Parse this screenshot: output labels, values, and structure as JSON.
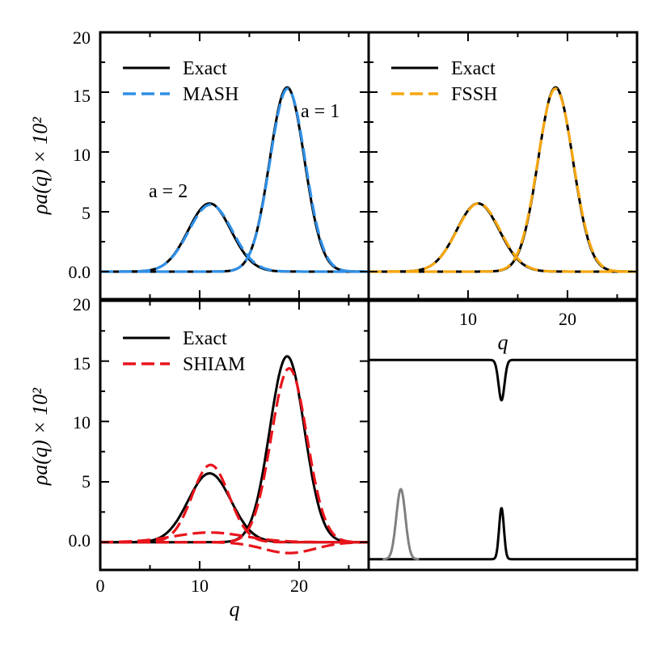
{
  "chart_data": [
    {
      "panel": "top-left",
      "type": "line",
      "ylabel": "ρa(q) × 10²",
      "ylim": [
        -2.3,
        20
      ],
      "xlim": [
        0,
        27
      ],
      "yticks": [
        {
          "value": 0,
          "label": "0.0"
        },
        {
          "value": 5,
          "label": "5"
        },
        {
          "value": 10,
          "label": "10"
        },
        {
          "value": 15,
          "label": "15"
        },
        {
          "value": 20,
          "label": "20"
        }
      ],
      "legend": {
        "position": "top-left",
        "entries": [
          "Exact",
          "MASH"
        ]
      },
      "annotations": [
        {
          "text": "a = 2",
          "x": 7.8,
          "y": 6.8
        },
        {
          "text": "a = 1",
          "x": 22.8,
          "y": 13.0
        }
      ],
      "series": [
        {
          "name": "Exact",
          "role": "exact",
          "peaks": [
            {
              "amp": 5.7,
              "mu": 11.0,
              "sigma": 2.15
            },
            {
              "amp": 15.4,
              "mu": 18.8,
              "sigma": 1.75
            }
          ]
        },
        {
          "name": "MASH",
          "role": "method",
          "color": "#2f8fe6",
          "peaks": [
            {
              "amp": 5.6,
              "mu": 11.1,
              "sigma": 2.2
            },
            {
              "amp": 15.3,
              "mu": 18.85,
              "sigma": 1.77
            }
          ]
        }
      ]
    },
    {
      "panel": "top-right",
      "type": "line",
      "xlabel": "q",
      "xlim": [
        0,
        27
      ],
      "ylim": [
        -2.3,
        20
      ],
      "xticks": [
        {
          "value": 10,
          "label": "10"
        },
        {
          "value": 20,
          "label": "20"
        }
      ],
      "legend": {
        "position": "top-left",
        "entries": [
          "Exact",
          "FSSH"
        ]
      },
      "series": [
        {
          "name": "Exact",
          "role": "exact",
          "peaks": [
            {
              "amp": 5.7,
              "mu": 11.0,
              "sigma": 2.15
            },
            {
              "amp": 15.4,
              "mu": 18.8,
              "sigma": 1.75
            }
          ]
        },
        {
          "name": "FSSH",
          "role": "method",
          "color": "#f5a70f",
          "peaks": [
            {
              "amp": 5.7,
              "mu": 11.05,
              "sigma": 2.17
            },
            {
              "amp": 15.3,
              "mu": 18.8,
              "sigma": 1.78
            }
          ]
        }
      ]
    },
    {
      "panel": "bottom-left",
      "type": "line",
      "xlabel": "q",
      "ylabel": "ρa(q) × 10²",
      "xlim": [
        0,
        27
      ],
      "ylim": [
        -2.3,
        20
      ],
      "xticks": [
        {
          "value": 0,
          "label": "0"
        },
        {
          "value": 10,
          "label": "10"
        },
        {
          "value": 20,
          "label": "20"
        }
      ],
      "yticks": [
        {
          "value": 0,
          "label": "0.0"
        },
        {
          "value": 5,
          "label": "5"
        },
        {
          "value": 10,
          "label": "10"
        },
        {
          "value": 15,
          "label": "15"
        },
        {
          "value": 20,
          "label": "20"
        }
      ],
      "legend": {
        "position": "top-left",
        "entries": [
          "Exact",
          "SHIAM"
        ]
      },
      "series": [
        {
          "name": "Exact",
          "role": "exact",
          "peaks": [
            {
              "amp": 5.7,
              "mu": 11.0,
              "sigma": 2.15
            },
            {
              "amp": 15.4,
              "mu": 18.8,
              "sigma": 1.75
            }
          ]
        },
        {
          "name": "SHIAM",
          "role": "method",
          "color": "#e8141c",
          "peaks": [
            {
              "amp": 6.4,
              "mu": 11.1,
              "sigma": 1.85
            },
            {
              "amp": 14.4,
              "mu": 19.0,
              "sigma": 1.8
            }
          ]
        },
        {
          "name": "SHIAM",
          "role": "method",
          "color": "#e8141c",
          "peaks": [
            {
              "amp": 0.8,
              "mu": 11.0,
              "sigma": 3.6
            },
            {
              "amp": -0.9,
              "mu": 19.0,
              "sigma": 2.6
            }
          ]
        }
      ]
    },
    {
      "panel": "bottom-right",
      "type": "line",
      "description_free": true,
      "series": [
        {
          "name": "upper-state",
          "color": "#000000",
          "baseline": 0.78,
          "feature": {
            "amp": -0.15,
            "mu": 0.495,
            "sigma": 0.011
          }
        },
        {
          "name": "lower-state",
          "color": "#000000",
          "baseline": 0.04,
          "feature": {
            "amp": 0.19,
            "mu": 0.495,
            "sigma": 0.009
          }
        },
        {
          "name": "wavepacket",
          "color": "#808080",
          "baseline": 0.04,
          "feature": {
            "amp": 0.26,
            "mu": 0.12,
            "sigma": 0.017
          }
        }
      ]
    }
  ]
}
